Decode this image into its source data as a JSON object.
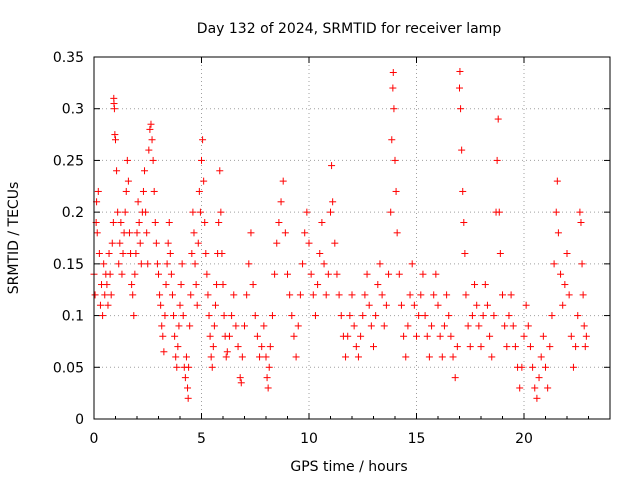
{
  "chart_data": {
    "type": "scatter",
    "title": "Day 132 of 2024, SRMTID for receiver lamp",
    "xlabel": "GPS time / hours",
    "ylabel": "SRMTID / TECUs",
    "xlim": [
      0,
      24
    ],
    "ylim": [
      0,
      0.35
    ],
    "xticks": [
      0,
      5,
      10,
      15,
      20
    ],
    "yticks": [
      0,
      0.05,
      0.1,
      0.15,
      0.2,
      0.25,
      0.3,
      0.35
    ],
    "xtick_labels": [
      "0",
      "5",
      "10",
      "15",
      "20"
    ],
    "ytick_labels": [
      "0",
      "0.05",
      "0.1",
      "0.15",
      "0.2",
      "0.25",
      "0.3",
      "0.35"
    ],
    "grid": true,
    "marker": "+",
    "color": "#ff0000",
    "series": [
      {
        "name": "SRMTID",
        "points": [
          [
            0.0,
            0.14
          ],
          [
            0.05,
            0.12
          ],
          [
            0.1,
            0.19
          ],
          [
            0.12,
            0.21
          ],
          [
            0.15,
            0.18
          ],
          [
            0.2,
            0.22
          ],
          [
            0.25,
            0.16
          ],
          [
            0.3,
            0.11
          ],
          [
            0.35,
            0.13
          ],
          [
            0.4,
            0.1
          ],
          [
            0.45,
            0.15
          ],
          [
            0.5,
            0.12
          ],
          [
            0.55,
            0.14
          ],
          [
            0.6,
            0.13
          ],
          [
            0.65,
            0.11
          ],
          [
            0.7,
            0.16
          ],
          [
            0.75,
            0.14
          ],
          [
            0.8,
            0.12
          ],
          [
            0.85,
            0.17
          ],
          [
            0.9,
            0.19
          ],
          [
            0.92,
            0.31
          ],
          [
            0.93,
            0.305
          ],
          [
            0.95,
            0.3
          ],
          [
            0.97,
            0.275
          ],
          [
            1.0,
            0.27
          ],
          [
            1.05,
            0.24
          ],
          [
            1.1,
            0.2
          ],
          [
            1.15,
            0.15
          ],
          [
            1.2,
            0.17
          ],
          [
            1.25,
            0.19
          ],
          [
            1.3,
            0.14
          ],
          [
            1.35,
            0.16
          ],
          [
            1.4,
            0.18
          ],
          [
            1.45,
            0.2
          ],
          [
            1.5,
            0.22
          ],
          [
            1.55,
            0.25
          ],
          [
            1.6,
            0.23
          ],
          [
            1.65,
            0.18
          ],
          [
            1.7,
            0.16
          ],
          [
            1.75,
            0.13
          ],
          [
            1.8,
            0.12
          ],
          [
            1.85,
            0.1
          ],
          [
            1.9,
            0.14
          ],
          [
            1.95,
            0.16
          ],
          [
            2.0,
            0.18
          ],
          [
            2.05,
            0.21
          ],
          [
            2.1,
            0.19
          ],
          [
            2.15,
            0.17
          ],
          [
            2.2,
            0.15
          ],
          [
            2.25,
            0.2
          ],
          [
            2.3,
            0.22
          ],
          [
            2.35,
            0.24
          ],
          [
            2.4,
            0.2
          ],
          [
            2.45,
            0.18
          ],
          [
            2.5,
            0.15
          ],
          [
            2.55,
            0.26
          ],
          [
            2.6,
            0.28
          ],
          [
            2.65,
            0.285
          ],
          [
            2.7,
            0.27
          ],
          [
            2.75,
            0.25
          ],
          [
            2.8,
            0.22
          ],
          [
            2.85,
            0.19
          ],
          [
            2.9,
            0.17
          ],
          [
            2.95,
            0.15
          ],
          [
            3.0,
            0.14
          ],
          [
            3.05,
            0.12
          ],
          [
            3.1,
            0.11
          ],
          [
            3.15,
            0.09
          ],
          [
            3.2,
            0.08
          ],
          [
            3.25,
            0.065
          ],
          [
            3.3,
            0.1
          ],
          [
            3.35,
            0.13
          ],
          [
            3.4,
            0.15
          ],
          [
            3.45,
            0.17
          ],
          [
            3.5,
            0.19
          ],
          [
            3.55,
            0.16
          ],
          [
            3.6,
            0.14
          ],
          [
            3.65,
            0.12
          ],
          [
            3.7,
            0.1
          ],
          [
            3.75,
            0.08
          ],
          [
            3.8,
            0.06
          ],
          [
            3.85,
            0.05
          ],
          [
            3.9,
            0.07
          ],
          [
            3.95,
            0.09
          ],
          [
            4.0,
            0.11
          ],
          [
            4.05,
            0.13
          ],
          [
            4.1,
            0.15
          ],
          [
            4.15,
            0.1
          ],
          [
            4.2,
            0.05
          ],
          [
            4.25,
            0.04
          ],
          [
            4.3,
            0.06
          ],
          [
            4.35,
            0.03
          ],
          [
            4.38,
            0.02
          ],
          [
            4.4,
            0.05
          ],
          [
            4.45,
            0.09
          ],
          [
            4.5,
            0.12
          ],
          [
            4.55,
            0.16
          ],
          [
            4.6,
            0.2
          ],
          [
            4.65,
            0.18
          ],
          [
            4.7,
            0.15
          ],
          [
            4.75,
            0.13
          ],
          [
            4.8,
            0.11
          ],
          [
            4.85,
            0.17
          ],
          [
            4.9,
            0.22
          ],
          [
            4.95,
            0.2
          ],
          [
            5.0,
            0.25
          ],
          [
            5.05,
            0.27
          ],
          [
            5.1,
            0.23
          ],
          [
            5.15,
            0.19
          ],
          [
            5.2,
            0.16
          ],
          [
            5.25,
            0.14
          ],
          [
            5.3,
            0.12
          ],
          [
            5.35,
            0.1
          ],
          [
            5.4,
            0.08
          ],
          [
            5.45,
            0.06
          ],
          [
            5.5,
            0.05
          ],
          [
            5.55,
            0.07
          ],
          [
            5.6,
            0.09
          ],
          [
            5.65,
            0.11
          ],
          [
            5.7,
            0.13
          ],
          [
            5.75,
            0.16
          ],
          [
            5.8,
            0.19
          ],
          [
            5.85,
            0.24
          ],
          [
            5.9,
            0.2
          ],
          [
            5.95,
            0.16
          ],
          [
            6.0,
            0.13
          ],
          [
            6.05,
            0.1
          ],
          [
            6.1,
            0.08
          ],
          [
            6.15,
            0.06
          ],
          [
            6.2,
            0.065
          ],
          [
            6.3,
            0.08
          ],
          [
            6.4,
            0.1
          ],
          [
            6.5,
            0.12
          ],
          [
            6.6,
            0.09
          ],
          [
            6.7,
            0.07
          ],
          [
            6.8,
            0.04
          ],
          [
            6.85,
            0.035
          ],
          [
            6.9,
            0.06
          ],
          [
            7.0,
            0.09
          ],
          [
            7.1,
            0.12
          ],
          [
            7.2,
            0.15
          ],
          [
            7.3,
            0.18
          ],
          [
            7.4,
            0.13
          ],
          [
            7.5,
            0.1
          ],
          [
            7.6,
            0.08
          ],
          [
            7.7,
            0.06
          ],
          [
            7.8,
            0.07
          ],
          [
            7.9,
            0.09
          ],
          [
            8.0,
            0.06
          ],
          [
            8.05,
            0.04
          ],
          [
            8.1,
            0.03
          ],
          [
            8.15,
            0.05
          ],
          [
            8.2,
            0.07
          ],
          [
            8.3,
            0.1
          ],
          [
            8.4,
            0.14
          ],
          [
            8.5,
            0.17
          ],
          [
            8.6,
            0.19
          ],
          [
            8.7,
            0.21
          ],
          [
            8.8,
            0.23
          ],
          [
            8.9,
            0.18
          ],
          [
            9.0,
            0.14
          ],
          [
            9.1,
            0.12
          ],
          [
            9.2,
            0.1
          ],
          [
            9.3,
            0.08
          ],
          [
            9.4,
            0.06
          ],
          [
            9.5,
            0.09
          ],
          [
            9.6,
            0.12
          ],
          [
            9.7,
            0.15
          ],
          [
            9.8,
            0.18
          ],
          [
            9.9,
            0.2
          ],
          [
            10.0,
            0.17
          ],
          [
            10.1,
            0.14
          ],
          [
            10.2,
            0.12
          ],
          [
            10.3,
            0.1
          ],
          [
            10.4,
            0.13
          ],
          [
            10.5,
            0.16
          ],
          [
            10.6,
            0.19
          ],
          [
            10.7,
            0.15
          ],
          [
            10.8,
            0.12
          ],
          [
            10.9,
            0.14
          ],
          [
            11.0,
            0.2
          ],
          [
            11.05,
            0.245
          ],
          [
            11.1,
            0.21
          ],
          [
            11.2,
            0.17
          ],
          [
            11.3,
            0.14
          ],
          [
            11.4,
            0.12
          ],
          [
            11.5,
            0.1
          ],
          [
            11.6,
            0.08
          ],
          [
            11.7,
            0.06
          ],
          [
            11.8,
            0.08
          ],
          [
            11.9,
            0.1
          ],
          [
            12.0,
            0.12
          ],
          [
            12.1,
            0.09
          ],
          [
            12.2,
            0.07
          ],
          [
            12.3,
            0.06
          ],
          [
            12.4,
            0.08
          ],
          [
            12.5,
            0.1
          ],
          [
            12.6,
            0.12
          ],
          [
            12.7,
            0.14
          ],
          [
            12.8,
            0.11
          ],
          [
            12.9,
            0.09
          ],
          [
            13.0,
            0.07
          ],
          [
            13.1,
            0.1
          ],
          [
            13.2,
            0.13
          ],
          [
            13.3,
            0.15
          ],
          [
            13.4,
            0.12
          ],
          [
            13.5,
            0.09
          ],
          [
            13.6,
            0.11
          ],
          [
            13.7,
            0.14
          ],
          [
            13.8,
            0.2
          ],
          [
            13.85,
            0.27
          ],
          [
            13.9,
            0.32
          ],
          [
            13.92,
            0.335
          ],
          [
            13.95,
            0.3
          ],
          [
            14.0,
            0.25
          ],
          [
            14.05,
            0.22
          ],
          [
            14.1,
            0.18
          ],
          [
            14.2,
            0.14
          ],
          [
            14.3,
            0.11
          ],
          [
            14.4,
            0.08
          ],
          [
            14.5,
            0.06
          ],
          [
            14.6,
            0.09
          ],
          [
            14.7,
            0.12
          ],
          [
            14.8,
            0.15
          ],
          [
            14.9,
            0.11
          ],
          [
            15.0,
            0.08
          ],
          [
            15.1,
            0.1
          ],
          [
            15.2,
            0.12
          ],
          [
            15.3,
            0.14
          ],
          [
            15.4,
            0.1
          ],
          [
            15.5,
            0.08
          ],
          [
            15.6,
            0.06
          ],
          [
            15.7,
            0.09
          ],
          [
            15.8,
            0.12
          ],
          [
            15.9,
            0.14
          ],
          [
            16.0,
            0.11
          ],
          [
            16.1,
            0.08
          ],
          [
            16.2,
            0.06
          ],
          [
            16.3,
            0.09
          ],
          [
            16.4,
            0.12
          ],
          [
            16.5,
            0.1
          ],
          [
            16.6,
            0.08
          ],
          [
            16.7,
            0.06
          ],
          [
            16.8,
            0.04
          ],
          [
            16.9,
            0.07
          ],
          [
            17.0,
            0.32
          ],
          [
            17.02,
            0.336
          ],
          [
            17.05,
            0.3
          ],
          [
            17.1,
            0.26
          ],
          [
            17.15,
            0.22
          ],
          [
            17.2,
            0.19
          ],
          [
            17.25,
            0.16
          ],
          [
            17.3,
            0.12
          ],
          [
            17.4,
            0.09
          ],
          [
            17.5,
            0.07
          ],
          [
            17.6,
            0.1
          ],
          [
            17.7,
            0.13
          ],
          [
            17.8,
            0.11
          ],
          [
            17.9,
            0.09
          ],
          [
            18.0,
            0.07
          ],
          [
            18.1,
            0.1
          ],
          [
            18.2,
            0.13
          ],
          [
            18.3,
            0.11
          ],
          [
            18.4,
            0.08
          ],
          [
            18.5,
            0.06
          ],
          [
            18.6,
            0.1
          ],
          [
            18.7,
            0.2
          ],
          [
            18.75,
            0.25
          ],
          [
            18.8,
            0.29
          ],
          [
            18.85,
            0.2
          ],
          [
            18.9,
            0.16
          ],
          [
            19.0,
            0.12
          ],
          [
            19.1,
            0.09
          ],
          [
            19.2,
            0.07
          ],
          [
            19.3,
            0.1
          ],
          [
            19.4,
            0.12
          ],
          [
            19.5,
            0.09
          ],
          [
            19.6,
            0.07
          ],
          [
            19.7,
            0.05
          ],
          [
            19.8,
            0.03
          ],
          [
            19.9,
            0.05
          ],
          [
            20.0,
            0.08
          ],
          [
            20.1,
            0.11
          ],
          [
            20.2,
            0.09
          ],
          [
            20.3,
            0.07
          ],
          [
            20.4,
            0.05
          ],
          [
            20.5,
            0.03
          ],
          [
            20.6,
            0.02
          ],
          [
            20.7,
            0.04
          ],
          [
            20.8,
            0.06
          ],
          [
            20.9,
            0.08
          ],
          [
            21.0,
            0.05
          ],
          [
            21.1,
            0.03
          ],
          [
            21.2,
            0.07
          ],
          [
            21.3,
            0.1
          ],
          [
            21.4,
            0.15
          ],
          [
            21.5,
            0.2
          ],
          [
            21.55,
            0.23
          ],
          [
            21.6,
            0.18
          ],
          [
            21.7,
            0.14
          ],
          [
            21.8,
            0.11
          ],
          [
            21.9,
            0.13
          ],
          [
            22.0,
            0.16
          ],
          [
            22.1,
            0.12
          ],
          [
            22.2,
            0.08
          ],
          [
            22.3,
            0.05
          ],
          [
            22.4,
            0.07
          ],
          [
            22.5,
            0.1
          ],
          [
            22.6,
            0.2
          ],
          [
            22.65,
            0.19
          ],
          [
            22.7,
            0.15
          ],
          [
            22.75,
            0.12
          ],
          [
            22.8,
            0.09
          ],
          [
            22.85,
            0.07
          ],
          [
            22.9,
            0.08
          ]
        ]
      }
    ]
  }
}
